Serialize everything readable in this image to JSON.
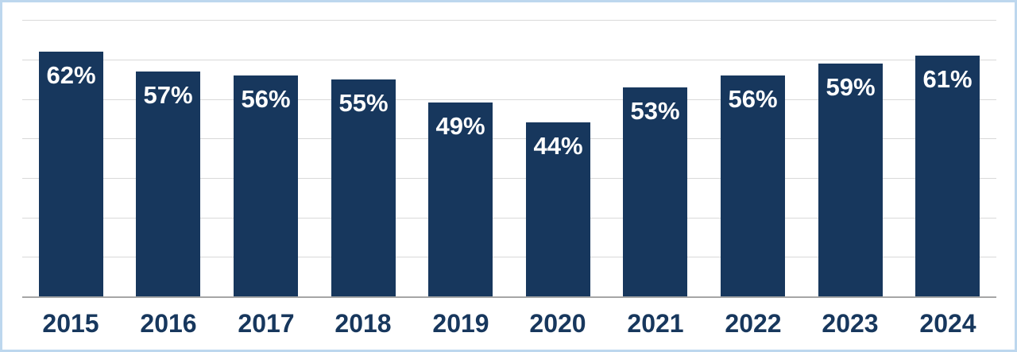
{
  "chart_data": {
    "type": "bar",
    "title": "",
    "xlabel": "",
    "ylabel": "",
    "categories": [
      "2015",
      "2016",
      "2017",
      "2018",
      "2019",
      "2020",
      "2021",
      "2022",
      "2023",
      "2024"
    ],
    "values": [
      62,
      57,
      56,
      55,
      49,
      44,
      53,
      56,
      59,
      61
    ],
    "value_labels": [
      "62%",
      "57%",
      "56%",
      "55%",
      "49%",
      "44%",
      "53%",
      "56%",
      "59%",
      "61%"
    ],
    "value_unit": "%",
    "ylim": [
      0,
      75
    ],
    "gridlines": "horizontal every 10%, no y-axis tick labels shown",
    "legend": "none",
    "series_count": 1
  },
  "colors": {
    "bar_fill": "#17375d",
    "value_label_text": "#ffffff",
    "category_label_text": "#17375d",
    "gridline": "#d9d9d9",
    "axis_line": "#a6a6a6",
    "frame_border": "#bdd7ee",
    "background": "#ffffff"
  }
}
